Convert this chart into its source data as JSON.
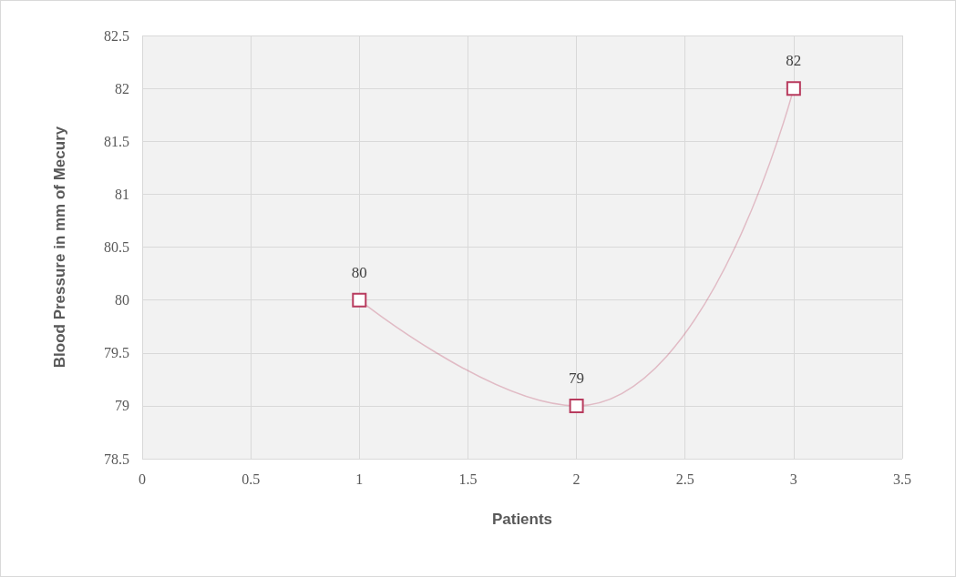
{
  "chart_data": {
    "type": "line",
    "xlabel": "Patients",
    "ylabel": "Blood Pressure in mm of Mecury",
    "x": [
      1,
      2,
      3
    ],
    "series": [
      {
        "color": "#b83b5e",
        "values": [
          80,
          79,
          82
        ]
      }
    ],
    "xlim": [
      0,
      3.5
    ],
    "xticks": [
      0,
      0.5,
      1,
      1.5,
      2,
      2.5,
      3,
      3.5
    ],
    "ylim": [
      78.5,
      82.5
    ],
    "yticks": [
      78.5,
      79,
      79.5,
      80,
      80.5,
      81,
      81.5,
      82,
      82.5
    ],
    "grid": true,
    "marker": "square",
    "data_labels": true
  }
}
